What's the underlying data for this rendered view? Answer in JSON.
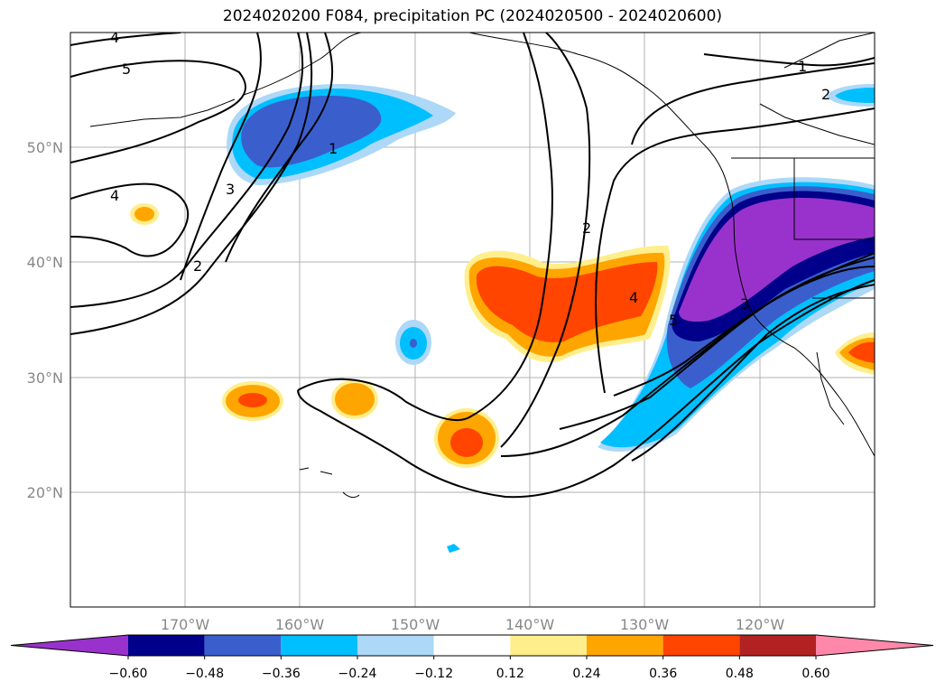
{
  "title": "2024020200 F084, precipitation PC (2024020500 - 2024020600)",
  "map": {
    "lat_ticks": [
      {
        "value": 50,
        "label": "50°N"
      },
      {
        "value": 40,
        "label": "40°N"
      },
      {
        "value": 30,
        "label": "30°N"
      },
      {
        "value": 20,
        "label": "20°N"
      }
    ],
    "lon_ticks": [
      {
        "value": -170,
        "label": "170°W"
      },
      {
        "value": -160,
        "label": "160°W"
      },
      {
        "value": -150,
        "label": "150°W"
      },
      {
        "value": -140,
        "label": "140°W"
      },
      {
        "value": -130,
        "label": "130°W"
      },
      {
        "value": -120,
        "label": "120°W"
      }
    ],
    "contour_labels": [
      "4",
      "5",
      "1",
      "2",
      "3",
      "4",
      "2",
      "2",
      "4",
      "5",
      "3",
      "1"
    ]
  },
  "colorbar": {
    "colors": [
      "#9932CC",
      "#00008B",
      "#3A5FCD",
      "#00BFFF",
      "#ADD8F7",
      "#FFFFFF",
      "#FFEE8C",
      "#FFA500",
      "#FF4500",
      "#B22222",
      "#FF88AA"
    ],
    "tick_labels": [
      "−0.60",
      "−0.48",
      "−0.36",
      "−0.24",
      "−0.12",
      "0.12",
      "0.24",
      "0.36",
      "0.48",
      "0.60"
    ]
  }
}
